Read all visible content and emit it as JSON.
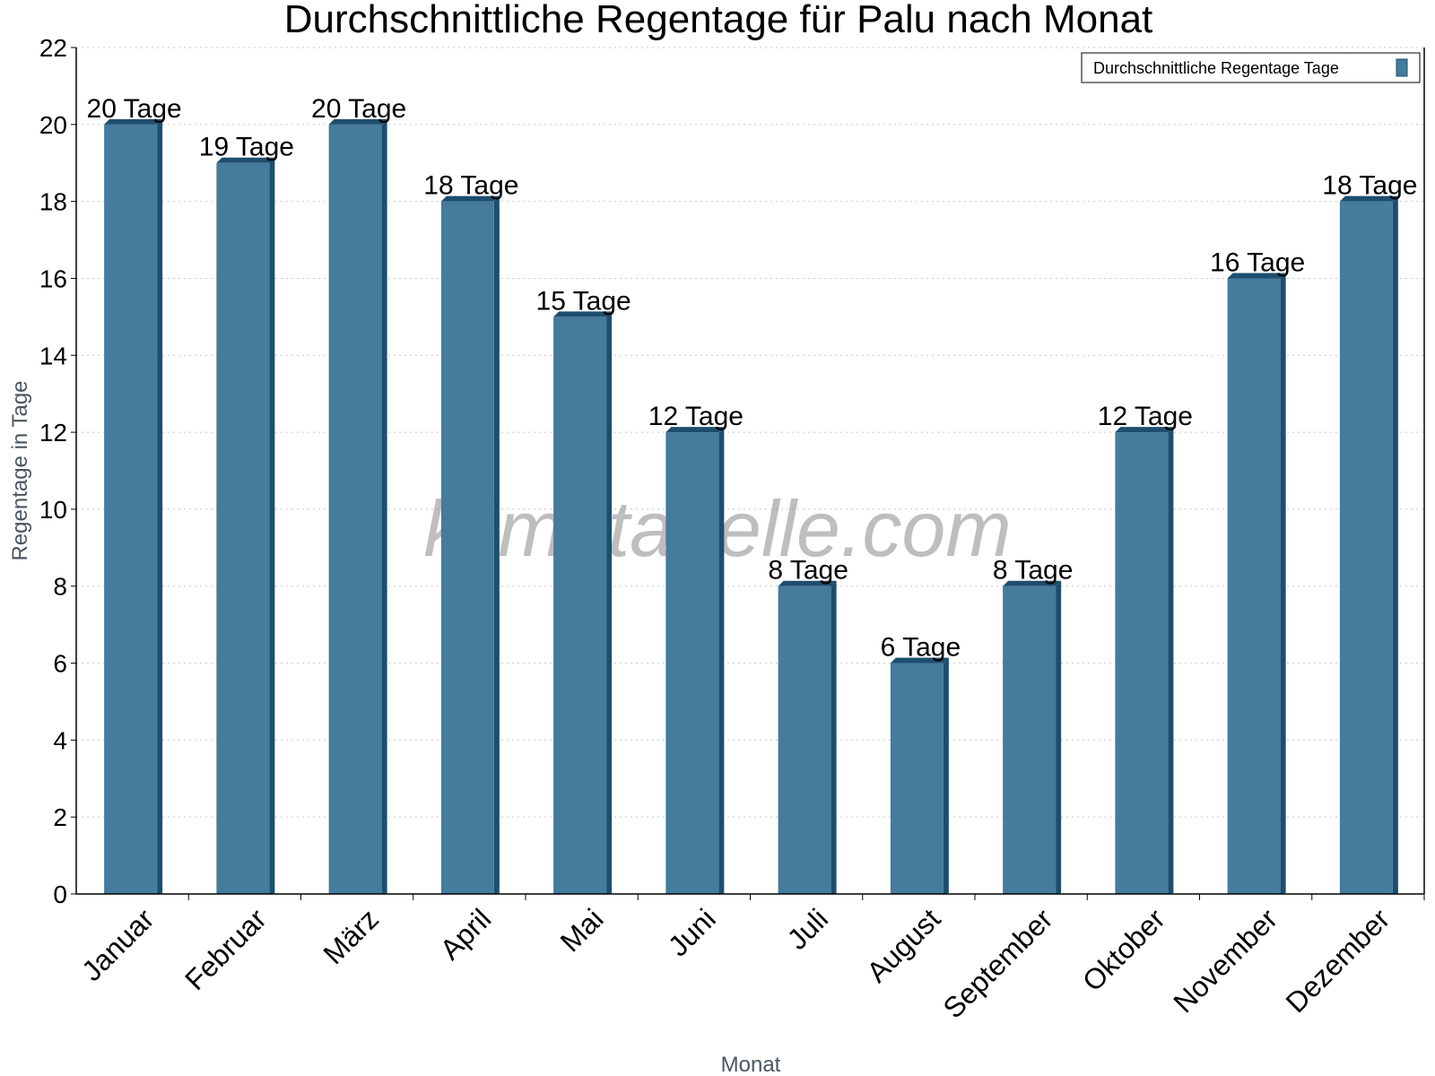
{
  "chart_data": {
    "type": "bar",
    "title": "Durchschnittliche Regentage für Palu nach Monat",
    "xlabel": "Monat",
    "ylabel": "Regentage in Tage",
    "categories": [
      "Januar",
      "Februar",
      "März",
      "April",
      "Mai",
      "Juni",
      "Juli",
      "August",
      "September",
      "Oktober",
      "November",
      "Dezember"
    ],
    "series": [
      {
        "name": "Durchschnittliche Regentage Tage",
        "values": [
          20,
          19,
          20,
          18,
          15,
          12,
          8,
          6,
          8,
          12,
          16,
          18
        ],
        "color": "#457b9d",
        "edge_color": "#1d4e6e"
      }
    ],
    "data_labels": [
      "20 Tage",
      "19 Tage",
      "20 Tage",
      "18 Tage",
      "15 Tage",
      "12 Tage",
      "8 Tage",
      "6 Tage",
      "8 Tage",
      "12 Tage",
      "16 Tage",
      "18 Tage"
    ],
    "ylim": [
      0,
      22
    ],
    "yticks": [
      0,
      2,
      4,
      6,
      8,
      10,
      12,
      14,
      16,
      18,
      20,
      22
    ],
    "grid": true,
    "legend": "top-right",
    "watermark": "klimatabelle.com"
  }
}
